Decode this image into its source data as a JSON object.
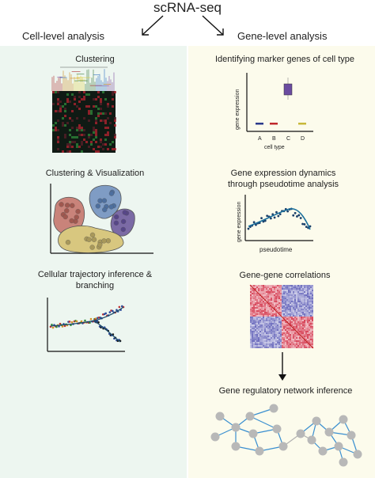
{
  "title": "scRNA-seq",
  "left_heading": "Cell-level analysis",
  "right_heading": "Gene-level analysis",
  "left_sections": [
    {
      "label": "Clustering"
    },
    {
      "label": "Clustering & Visualization"
    },
    {
      "label": "Cellular trajectory inference & branching"
    }
  ],
  "right_sections": [
    {
      "label": "Identifying marker genes of cell type"
    },
    {
      "label": "Gene expression dynamics through pseudotime analysis"
    },
    {
      "label": "Gene-gene correlations"
    },
    {
      "label": "Gene regulatory network inference"
    }
  ],
  "marker_plot": {
    "ylabel": "gene expression",
    "xlabel": "cell type",
    "categories": [
      "A",
      "B",
      "C",
      "D"
    ],
    "colors": [
      "#2b3a8c",
      "#c0282d",
      "#6a4ba0",
      "#c8b83a"
    ]
  },
  "pseudotime_plot": {
    "ylabel": "gene expression",
    "xlabel": "pseudotime"
  },
  "colors": {
    "left_bg": "#edf6f0",
    "right_bg": "#fcfbec",
    "cluster_pink": "#c9837a",
    "cluster_blue": "#7f9cc4",
    "cluster_purple": "#7b6aa5",
    "cluster_yellow": "#d8c77f"
  }
}
